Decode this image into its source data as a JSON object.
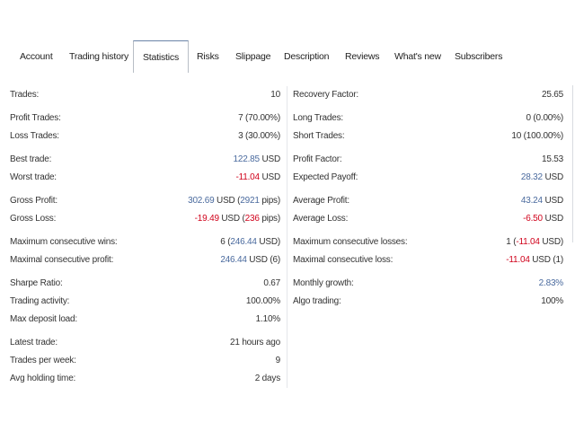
{
  "tabs": [
    {
      "label": "Account",
      "active": false
    },
    {
      "label": "Trading history",
      "active": false
    },
    {
      "label": "Statistics",
      "active": true
    },
    {
      "label": "Risks",
      "active": false
    },
    {
      "label": "Slippage",
      "active": false
    },
    {
      "label": "Description",
      "active": false
    },
    {
      "label": "Reviews",
      "active": false
    },
    {
      "label": "What's new",
      "active": false
    },
    {
      "label": "Subscribers",
      "active": false
    }
  ],
  "colors": {
    "blue": "#4a6a9e",
    "red": "#d0021b"
  },
  "left": [
    [
      {
        "label": "Trades:",
        "value": [
          {
            "t": "10"
          }
        ]
      }
    ],
    [
      {
        "label": "Profit Trades:",
        "value": [
          {
            "t": "7 (70.00%)"
          }
        ]
      },
      {
        "label": "Loss Trades:",
        "value": [
          {
            "t": "3 (30.00%)"
          }
        ]
      }
    ],
    [
      {
        "label": "Best trade:",
        "value": [
          {
            "t": "122.85",
            "c": "blue"
          },
          {
            "t": " USD"
          }
        ]
      },
      {
        "label": "Worst trade:",
        "value": [
          {
            "t": "-11.04",
            "c": "red"
          },
          {
            "t": " USD"
          }
        ]
      }
    ],
    [
      {
        "label": "Gross Profit:",
        "value": [
          {
            "t": "302.69",
            "c": "blue"
          },
          {
            "t": " USD ("
          },
          {
            "t": "2921",
            "c": "blue"
          },
          {
            "t": " pips)"
          }
        ]
      },
      {
        "label": "Gross Loss:",
        "value": [
          {
            "t": "-19.49",
            "c": "red"
          },
          {
            "t": " USD ("
          },
          {
            "t": "236",
            "c": "red"
          },
          {
            "t": " pips)"
          }
        ]
      }
    ],
    [
      {
        "label": "Maximum consecutive wins:",
        "value": [
          {
            "t": "6 ("
          },
          {
            "t": "246.44",
            "c": "blue"
          },
          {
            "t": " USD)"
          }
        ]
      },
      {
        "label": "Maximal consecutive profit:",
        "value": [
          {
            "t": "246.44",
            "c": "blue"
          },
          {
            "t": " USD (6)"
          }
        ]
      }
    ],
    [
      {
        "label": "Sharpe Ratio:",
        "value": [
          {
            "t": "0.67"
          }
        ]
      },
      {
        "label": "Trading activity:",
        "value": [
          {
            "t": "100.00%"
          }
        ]
      },
      {
        "label": "Max deposit load:",
        "value": [
          {
            "t": "1.10%"
          }
        ]
      }
    ],
    [
      {
        "label": "Latest trade:",
        "value": [
          {
            "t": "21 hours ago"
          }
        ]
      },
      {
        "label": "Trades per week:",
        "value": [
          {
            "t": "9"
          }
        ]
      },
      {
        "label": "Avg holding time:",
        "value": [
          {
            "t": "2 days"
          }
        ]
      }
    ]
  ],
  "right": [
    [
      {
        "label": "Recovery Factor:",
        "value": [
          {
            "t": "25.65"
          }
        ]
      }
    ],
    [
      {
        "label": "Long Trades:",
        "value": [
          {
            "t": "0 (0.00%)"
          }
        ]
      },
      {
        "label": "Short Trades:",
        "value": [
          {
            "t": "10 (100.00%)"
          }
        ]
      }
    ],
    [
      {
        "label": "Profit Factor:",
        "value": [
          {
            "t": "15.53"
          }
        ]
      },
      {
        "label": "Expected Payoff:",
        "value": [
          {
            "t": "28.32",
            "c": "blue"
          },
          {
            "t": " USD"
          }
        ]
      }
    ],
    [
      {
        "label": "Average Profit:",
        "value": [
          {
            "t": "43.24",
            "c": "blue"
          },
          {
            "t": " USD"
          }
        ]
      },
      {
        "label": "Average Loss:",
        "value": [
          {
            "t": "-6.50",
            "c": "red"
          },
          {
            "t": " USD"
          }
        ]
      }
    ],
    [
      {
        "label": "Maximum consecutive losses:",
        "value": [
          {
            "t": "1 ("
          },
          {
            "t": "-11.04",
            "c": "red"
          },
          {
            "t": " USD)"
          }
        ]
      },
      {
        "label": "Maximal consecutive loss:",
        "value": [
          {
            "t": "-11.04",
            "c": "red"
          },
          {
            "t": " USD (1)"
          }
        ]
      }
    ],
    [
      {
        "label": "Monthly growth:",
        "value": [
          {
            "t": "2.83%",
            "c": "blue"
          }
        ]
      },
      {
        "label": "Algo trading:",
        "value": [
          {
            "t": "100%"
          }
        ]
      }
    ]
  ]
}
